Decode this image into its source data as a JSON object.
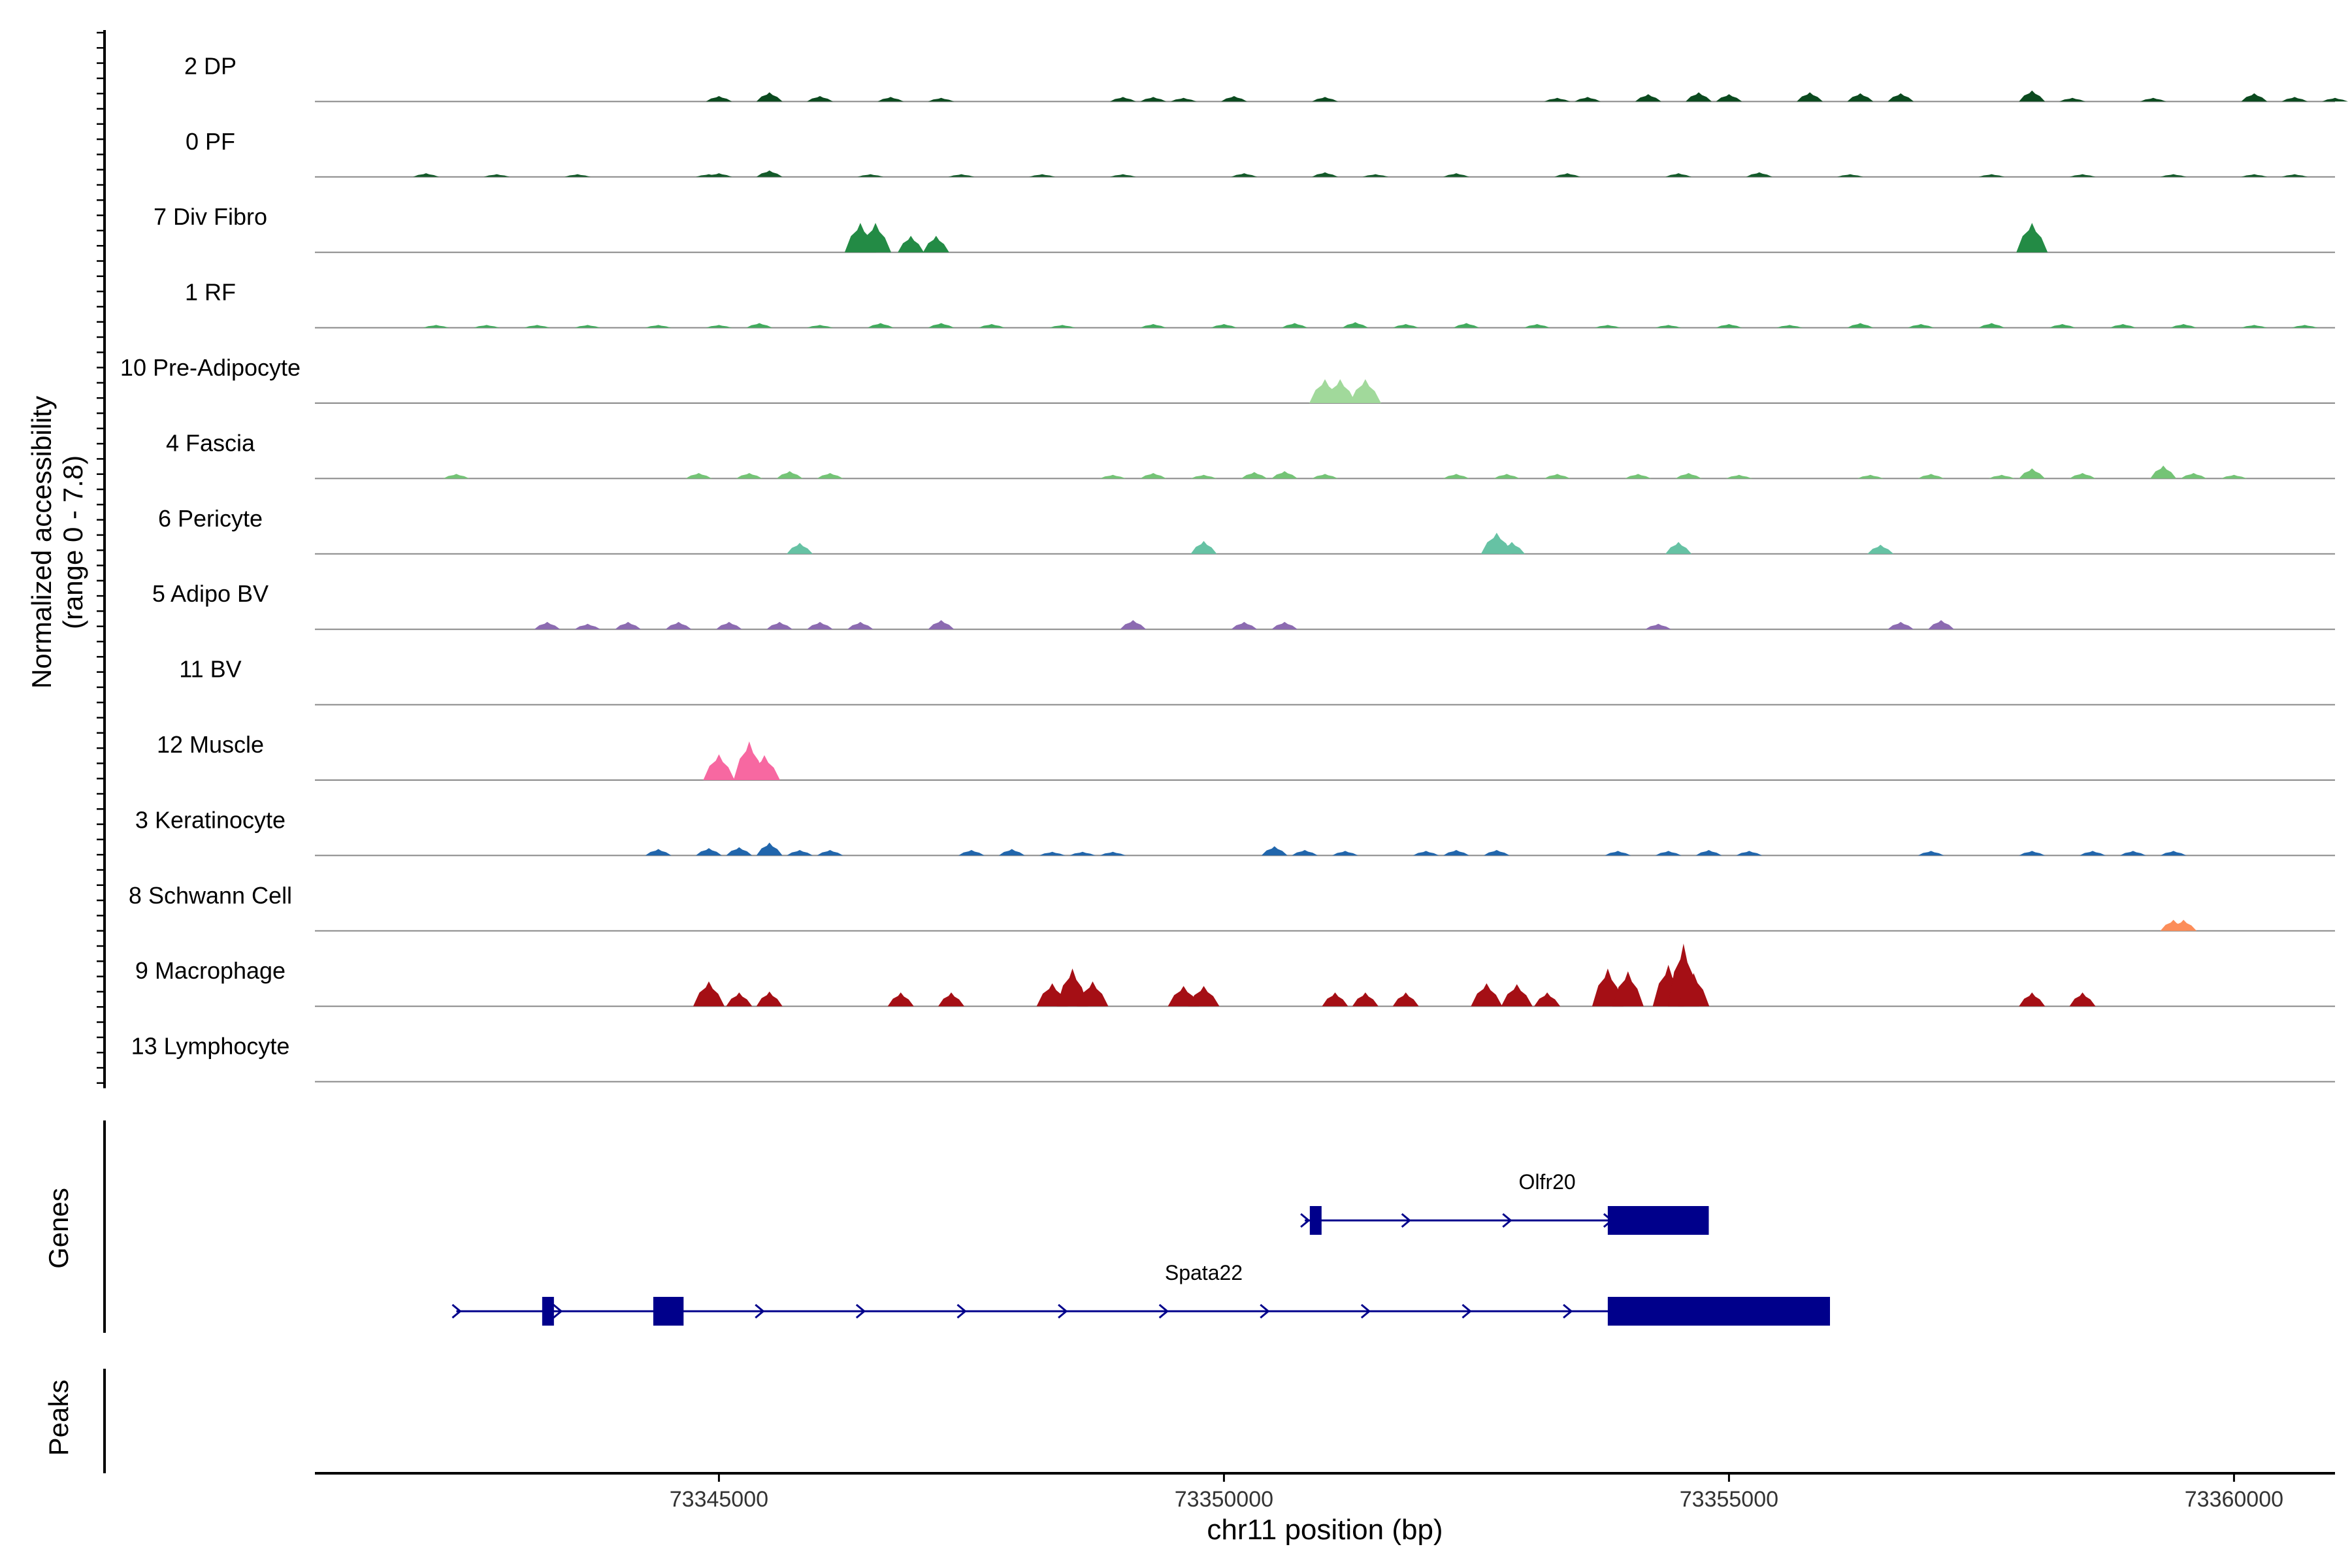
{
  "chart_data": {
    "type": "area",
    "chromosome": "chr11",
    "xlabel": "chr11 position (bp)",
    "ylabel": "Normalized accessibility",
    "ylabel_range": "(range 0 - 7.8)",
    "ylim": [
      0,
      7.8
    ],
    "xlim": [
      73341000,
      73361000
    ],
    "x_ticks": [
      73345000,
      73350000,
      73355000,
      73360000
    ],
    "x_tick_labels": [
      "73345000",
      "73350000",
      "73355000",
      "73360000"
    ],
    "grid": false,
    "series": [
      {
        "name": "2 DP",
        "color": "#0b4a1f",
        "peaks": [
          [
            73345000,
            0.6
          ],
          [
            73345500,
            1.0
          ],
          [
            73346000,
            0.6
          ],
          [
            73346700,
            0.5
          ],
          [
            73347200,
            0.4
          ],
          [
            73349000,
            0.5
          ],
          [
            73349300,
            0.5
          ],
          [
            73349600,
            0.4
          ],
          [
            73350100,
            0.6
          ],
          [
            73351000,
            0.5
          ],
          [
            73353300,
            0.4
          ],
          [
            73353600,
            0.5
          ],
          [
            73354200,
            0.8
          ],
          [
            73354700,
            1.0
          ],
          [
            73355000,
            0.8
          ],
          [
            73355800,
            1.0
          ],
          [
            73356300,
            0.9
          ],
          [
            73356700,
            0.9
          ],
          [
            73358000,
            1.2
          ],
          [
            73358400,
            0.4
          ],
          [
            73359200,
            0.4
          ],
          [
            73360200,
            0.9
          ],
          [
            73360600,
            0.5
          ],
          [
            73361000,
            0.4
          ]
        ]
      },
      {
        "name": "0 PF",
        "color": "#145a2a",
        "peaks": [
          [
            73342100,
            0.4
          ],
          [
            73342800,
            0.3
          ],
          [
            73343600,
            0.3
          ],
          [
            73344900,
            0.3
          ],
          [
            73345000,
            0.4
          ],
          [
            73345500,
            0.7
          ],
          [
            73346500,
            0.3
          ],
          [
            73347400,
            0.3
          ],
          [
            73348200,
            0.3
          ],
          [
            73349000,
            0.3
          ],
          [
            73350200,
            0.4
          ],
          [
            73351000,
            0.5
          ],
          [
            73351500,
            0.3
          ],
          [
            73352300,
            0.4
          ],
          [
            73353400,
            0.4
          ],
          [
            73354500,
            0.4
          ],
          [
            73355300,
            0.5
          ],
          [
            73356200,
            0.3
          ],
          [
            73357600,
            0.3
          ],
          [
            73358500,
            0.3
          ],
          [
            73359400,
            0.3
          ],
          [
            73360200,
            0.3
          ],
          [
            73360600,
            0.3
          ]
        ]
      },
      {
        "name": "7 Div Fibro",
        "color": "#238b45",
        "peaks": [
          [
            73346400,
            3.2
          ],
          [
            73346550,
            3.2
          ],
          [
            73346900,
            1.8
          ],
          [
            73347150,
            1.8
          ],
          [
            73358000,
            3.2
          ]
        ]
      },
      {
        "name": "1 RF",
        "color": "#41ab5d",
        "peaks": [
          [
            73342200,
            0.3
          ],
          [
            73342700,
            0.3
          ],
          [
            73343200,
            0.3
          ],
          [
            73343700,
            0.3
          ],
          [
            73344400,
            0.3
          ],
          [
            73345000,
            0.3
          ],
          [
            73345400,
            0.5
          ],
          [
            73346000,
            0.3
          ],
          [
            73346600,
            0.5
          ],
          [
            73347200,
            0.5
          ],
          [
            73347700,
            0.4
          ],
          [
            73348400,
            0.3
          ],
          [
            73349300,
            0.4
          ],
          [
            73350000,
            0.4
          ],
          [
            73350700,
            0.5
          ],
          [
            73351300,
            0.6
          ],
          [
            73351800,
            0.4
          ],
          [
            73352400,
            0.5
          ],
          [
            73353100,
            0.4
          ],
          [
            73353800,
            0.3
          ],
          [
            73354400,
            0.3
          ],
          [
            73355000,
            0.4
          ],
          [
            73355600,
            0.3
          ],
          [
            73356300,
            0.5
          ],
          [
            73356900,
            0.4
          ],
          [
            73357600,
            0.5
          ],
          [
            73358300,
            0.4
          ],
          [
            73358900,
            0.4
          ],
          [
            73359500,
            0.4
          ],
          [
            73360200,
            0.3
          ],
          [
            73360700,
            0.3
          ]
        ]
      },
      {
        "name": "10 Pre-Adipocyte",
        "color": "#a1d99b",
        "peaks": [
          [
            73351000,
            2.6
          ],
          [
            73351150,
            2.6
          ],
          [
            73351400,
            2.6
          ]
        ]
      },
      {
        "name": "4 Fascia",
        "color": "#74c476",
        "peaks": [
          [
            73342400,
            0.5
          ],
          [
            73344800,
            0.6
          ],
          [
            73345300,
            0.6
          ],
          [
            73345700,
            0.8
          ],
          [
            73346100,
            0.6
          ],
          [
            73348900,
            0.4
          ],
          [
            73349300,
            0.6
          ],
          [
            73349800,
            0.4
          ],
          [
            73350300,
            0.7
          ],
          [
            73350600,
            0.8
          ],
          [
            73351000,
            0.5
          ],
          [
            73352300,
            0.5
          ],
          [
            73352800,
            0.5
          ],
          [
            73353300,
            0.5
          ],
          [
            73354100,
            0.5
          ],
          [
            73354600,
            0.6
          ],
          [
            73355100,
            0.4
          ],
          [
            73356400,
            0.4
          ],
          [
            73357000,
            0.5
          ],
          [
            73357700,
            0.4
          ],
          [
            73358000,
            1.1
          ],
          [
            73358500,
            0.6
          ],
          [
            73359300,
            1.4
          ],
          [
            73359600,
            0.6
          ],
          [
            73360000,
            0.4
          ]
        ]
      },
      {
        "name": "6 Pericyte",
        "color": "#66c2a4",
        "peaks": [
          [
            73345800,
            1.2
          ],
          [
            73349800,
            1.4
          ],
          [
            73352700,
            2.3
          ],
          [
            73352850,
            1.3
          ],
          [
            73354500,
            1.3
          ],
          [
            73356500,
            1.0
          ]
        ]
      },
      {
        "name": "5 Adipo BV",
        "color": "#8c6bb1",
        "peaks": [
          [
            73343300,
            0.8
          ],
          [
            73343700,
            0.6
          ],
          [
            73344100,
            0.8
          ],
          [
            73344600,
            0.8
          ],
          [
            73345100,
            0.8
          ],
          [
            73345600,
            0.8
          ],
          [
            73346000,
            0.8
          ],
          [
            73346400,
            0.8
          ],
          [
            73347200,
            1.0
          ],
          [
            73349100,
            1.0
          ],
          [
            73350200,
            0.8
          ],
          [
            73350600,
            0.8
          ],
          [
            73354300,
            0.6
          ],
          [
            73356700,
            0.8
          ],
          [
            73357100,
            1.0
          ]
        ]
      },
      {
        "name": "11 BV",
        "color": "#6a51a3",
        "peaks": []
      },
      {
        "name": "12 Muscle",
        "color": "#f768a1",
        "peaks": [
          [
            73345000,
            2.8
          ],
          [
            73345300,
            4.2
          ],
          [
            73345450,
            2.7
          ]
        ]
      },
      {
        "name": "3 Keratinocyte",
        "color": "#2166ac",
        "peaks": [
          [
            73344400,
            0.7
          ],
          [
            73344900,
            0.8
          ],
          [
            73345200,
            0.9
          ],
          [
            73345500,
            1.4
          ],
          [
            73345800,
            0.6
          ],
          [
            73346100,
            0.6
          ],
          [
            73347500,
            0.6
          ],
          [
            73347900,
            0.7
          ],
          [
            73348300,
            0.4
          ],
          [
            73348600,
            0.4
          ],
          [
            73348900,
            0.4
          ],
          [
            73350500,
            1.0
          ],
          [
            73350800,
            0.6
          ],
          [
            73351200,
            0.5
          ],
          [
            73352000,
            0.5
          ],
          [
            73352300,
            0.6
          ],
          [
            73352700,
            0.6
          ],
          [
            73353900,
            0.5
          ],
          [
            73354400,
            0.5
          ],
          [
            73354800,
            0.6
          ],
          [
            73355200,
            0.5
          ],
          [
            73357000,
            0.5
          ],
          [
            73358000,
            0.5
          ],
          [
            73358600,
            0.5
          ],
          [
            73359000,
            0.5
          ],
          [
            73359400,
            0.5
          ]
        ]
      },
      {
        "name": "8 Schwann Cell",
        "color": "#fc8d59",
        "peaks": [
          [
            73359400,
            1.2
          ],
          [
            73359500,
            1.2
          ]
        ]
      },
      {
        "name": "9 Macrophage",
        "color": "#a50f15",
        "peaks": [
          [
            73344900,
            2.7
          ],
          [
            73345200,
            1.5
          ],
          [
            73345500,
            1.6
          ],
          [
            73346800,
            1.5
          ],
          [
            73347300,
            1.5
          ],
          [
            73348300,
            2.5
          ],
          [
            73348500,
            4.1
          ],
          [
            73348700,
            2.7
          ],
          [
            73349600,
            2.2
          ],
          [
            73349800,
            2.2
          ],
          [
            73351100,
            1.5
          ],
          [
            73351400,
            1.5
          ],
          [
            73351800,
            1.5
          ],
          [
            73352600,
            2.5
          ],
          [
            73352900,
            2.4
          ],
          [
            73353200,
            1.5
          ],
          [
            73353800,
            4.1
          ],
          [
            73354000,
            3.8
          ],
          [
            73354400,
            4.5
          ],
          [
            73354550,
            6.8
          ],
          [
            73354650,
            3.6
          ],
          [
            73358000,
            1.5
          ],
          [
            73358500,
            1.5
          ]
        ]
      },
      {
        "name": "13 Lymphocyte",
        "color": "#08519c",
        "peaks": []
      }
    ],
    "genes_panel_label": "Genes",
    "peaks_panel_label": "Peaks",
    "genes": [
      {
        "name": "Olfr20",
        "start": 73350800,
        "end": 73354800,
        "strand": "+",
        "color": "#00008b",
        "exons": [
          [
            73350850,
            73350950
          ],
          [
            73353800,
            73354800
          ]
        ]
      },
      {
        "name": "Spata22",
        "start": 73342400,
        "end": 73356000,
        "strand": "+",
        "color": "#00008b",
        "exons": [
          [
            73343250,
            73343350
          ],
          [
            73344350,
            73344650
          ],
          [
            73353800,
            73356000
          ]
        ]
      }
    ]
  }
}
